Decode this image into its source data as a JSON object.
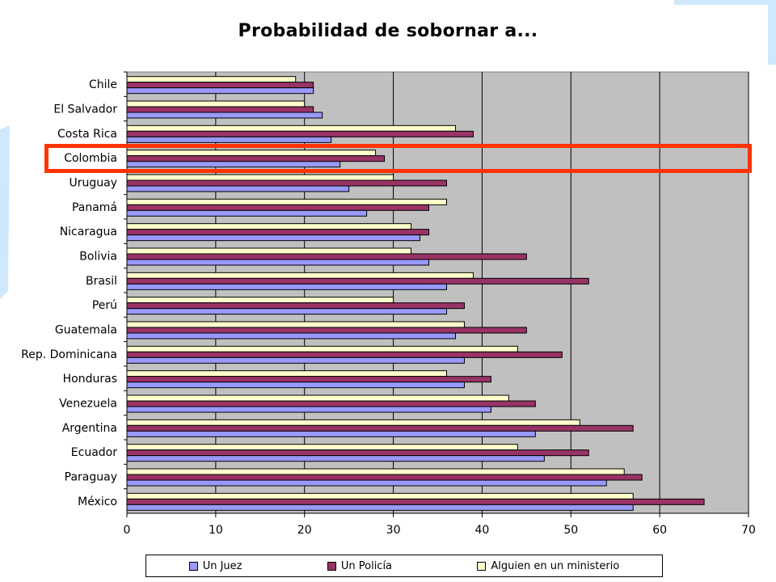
{
  "chart_data": {
    "type": "bar",
    "orientation": "horizontal",
    "title": "Probabilidad de sobornar a...",
    "categories": [
      "Chile",
      "El Salvador",
      "Costa Rica",
      "Colombia",
      "Uruguay",
      "Panamá",
      "Nicaragua",
      "Bolivia",
      "Brasil",
      "Perú",
      "Guatemala",
      "Rep. Dominicana",
      "Honduras",
      "Venezuela",
      "Argentina",
      "Ecuador",
      "Paraguay",
      "México"
    ],
    "series": [
      {
        "name": "Un Juez",
        "color": "#9999ff",
        "values": [
          21,
          22,
          23,
          24,
          25,
          27,
          33,
          34,
          36,
          36,
          37,
          38,
          38,
          41,
          46,
          47,
          54,
          57
        ]
      },
      {
        "name": "Un Policía",
        "color": "#993366",
        "values": [
          21,
          21,
          39,
          29,
          36,
          34,
          34,
          45,
          52,
          38,
          45,
          49,
          41,
          46,
          57,
          52,
          58,
          65
        ]
      },
      {
        "name": "Alguien en un ministerio",
        "color": "#ffffcc",
        "values": [
          19,
          20,
          37,
          28,
          30,
          36,
          32,
          32,
          39,
          30,
          38,
          44,
          36,
          43,
          51,
          44,
          56,
          57
        ]
      }
    ],
    "xlim": [
      0,
      70
    ],
    "xticks": [
      0,
      10,
      20,
      30,
      40,
      50,
      60,
      70
    ],
    "grid": true,
    "plot_background": "#c0c0c0",
    "legend_position": "bottom",
    "highlighted_category": "Colombia",
    "highlight_color": "#ff3300"
  }
}
